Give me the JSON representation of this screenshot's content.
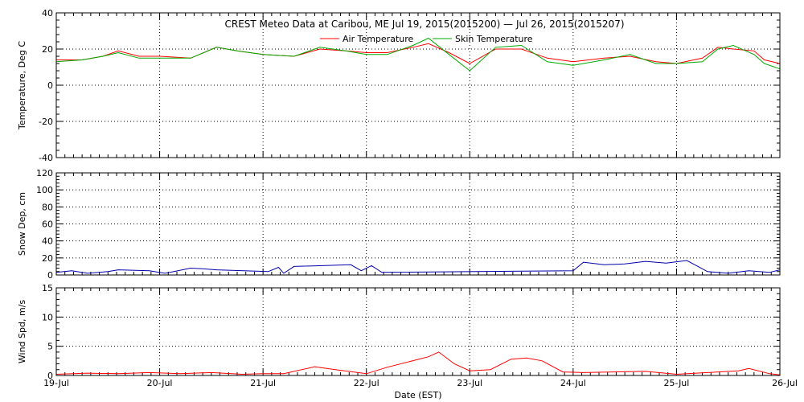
{
  "title": "CREST Meteo Data at Caribou, ME   Jul 19, 2015(2015200) — Jul 26, 2015(2015207)",
  "xlabel": "Date (EST)",
  "x_ticks": [
    "19-Jul",
    "20-Jul",
    "21-Jul",
    "22-Jul",
    "23-Jul",
    "24-Jul",
    "25-Jul",
    "26-Jul"
  ],
  "colors": {
    "air": "#ff0000",
    "skin": "#00aa00",
    "snow": "#0000aa",
    "wind": "#ff0000"
  },
  "chart_data": [
    {
      "type": "line",
      "ylabel": "Temperature, Deg C",
      "ylim": [
        -40,
        40
      ],
      "yticks": [
        -40,
        -20,
        0,
        20,
        40
      ],
      "xlim": [
        0,
        7
      ],
      "grid": true,
      "legend_placement": "top-center",
      "series": [
        {
          "name": "Air Temperature",
          "color": "#ff0000",
          "x": [
            0,
            0.25,
            0.45,
            0.6,
            0.8,
            1.0,
            1.3,
            1.55,
            1.75,
            2.0,
            2.3,
            2.55,
            2.8,
            3.0,
            3.2,
            3.45,
            3.6,
            3.8,
            4.0,
            4.25,
            4.5,
            4.75,
            5.0,
            5.3,
            5.55,
            5.8,
            6.0,
            6.25,
            6.4,
            6.55,
            6.75,
            6.85,
            7.0
          ],
          "y": [
            14,
            14,
            16,
            19,
            16,
            16,
            15,
            21,
            19,
            17,
            16,
            20,
            19,
            18,
            18,
            21,
            23,
            18,
            12,
            20,
            20,
            15,
            13,
            15,
            16,
            13,
            12,
            15,
            21,
            20,
            19,
            14,
            12
          ]
        },
        {
          "name": "Skin Temperature",
          "color": "#00aa00",
          "x": [
            0,
            0.25,
            0.45,
            0.6,
            0.8,
            1.0,
            1.3,
            1.55,
            1.75,
            2.0,
            2.3,
            2.55,
            2.8,
            3.0,
            3.2,
            3.45,
            3.6,
            3.8,
            4.0,
            4.25,
            4.5,
            4.75,
            5.0,
            5.3,
            5.55,
            5.8,
            6.0,
            6.25,
            6.4,
            6.55,
            6.75,
            6.85,
            7.0
          ],
          "y": [
            13,
            14,
            16,
            18,
            15,
            15,
            15,
            21,
            19,
            17,
            16,
            21,
            19,
            17,
            17,
            22,
            26,
            17,
            8,
            21,
            22,
            13,
            11,
            14,
            17,
            12,
            12,
            13,
            20,
            22,
            17,
            12,
            9
          ]
        }
      ]
    },
    {
      "type": "line",
      "ylabel": "Snow Dep, cm",
      "ylim": [
        0,
        120
      ],
      "yticks": [
        0,
        20,
        40,
        60,
        80,
        100,
        120
      ],
      "xlim": [
        0,
        7
      ],
      "grid": true,
      "series": [
        {
          "name": "",
          "color": "#0000aa",
          "x": [
            0,
            0.15,
            0.3,
            0.5,
            0.6,
            0.9,
            1.05,
            1.1,
            1.3,
            1.45,
            1.55,
            2.05,
            2.15,
            2.2,
            2.3,
            2.85,
            2.95,
            3.05,
            3.15,
            5.0,
            5.1,
            5.3,
            5.5,
            5.7,
            5.9,
            6.1,
            6.3,
            6.5,
            6.7,
            6.9,
            7.0
          ],
          "y": [
            3,
            5,
            2,
            4,
            6,
            5,
            2,
            3,
            8,
            7,
            6,
            4,
            9,
            2,
            10,
            12,
            5,
            11,
            3,
            5,
            15,
            12,
            13,
            16,
            14,
            17,
            4,
            2,
            5,
            3,
            6
          ]
        }
      ]
    },
    {
      "type": "line",
      "ylabel": "Wind Spd, m/s",
      "ylim": [
        0,
        15
      ],
      "yticks": [
        0,
        5,
        10,
        15
      ],
      "xlim": [
        0,
        7
      ],
      "grid": true,
      "series": [
        {
          "name": "",
          "color": "#ff0000",
          "x": [
            0,
            0.3,
            0.6,
            0.9,
            1.2,
            1.5,
            1.8,
            2.0,
            2.2,
            2.5,
            2.7,
            3.0,
            3.2,
            3.4,
            3.6,
            3.7,
            3.85,
            4.0,
            4.2,
            4.4,
            4.55,
            4.7,
            4.9,
            5.1,
            5.4,
            5.7,
            6.0,
            6.3,
            6.6,
            6.7,
            6.9,
            7.0
          ],
          "y": [
            0.2,
            0.4,
            0.3,
            0.5,
            0.3,
            0.5,
            0.2,
            0.3,
            0.3,
            1.5,
            1.0,
            0.3,
            1.4,
            2.3,
            3.2,
            4.0,
            2.0,
            0.8,
            1.0,
            2.8,
            3.0,
            2.5,
            0.6,
            0.5,
            0.6,
            0.7,
            0.2,
            0.5,
            0.8,
            1.2,
            0.3,
            0.1
          ]
        }
      ]
    }
  ]
}
